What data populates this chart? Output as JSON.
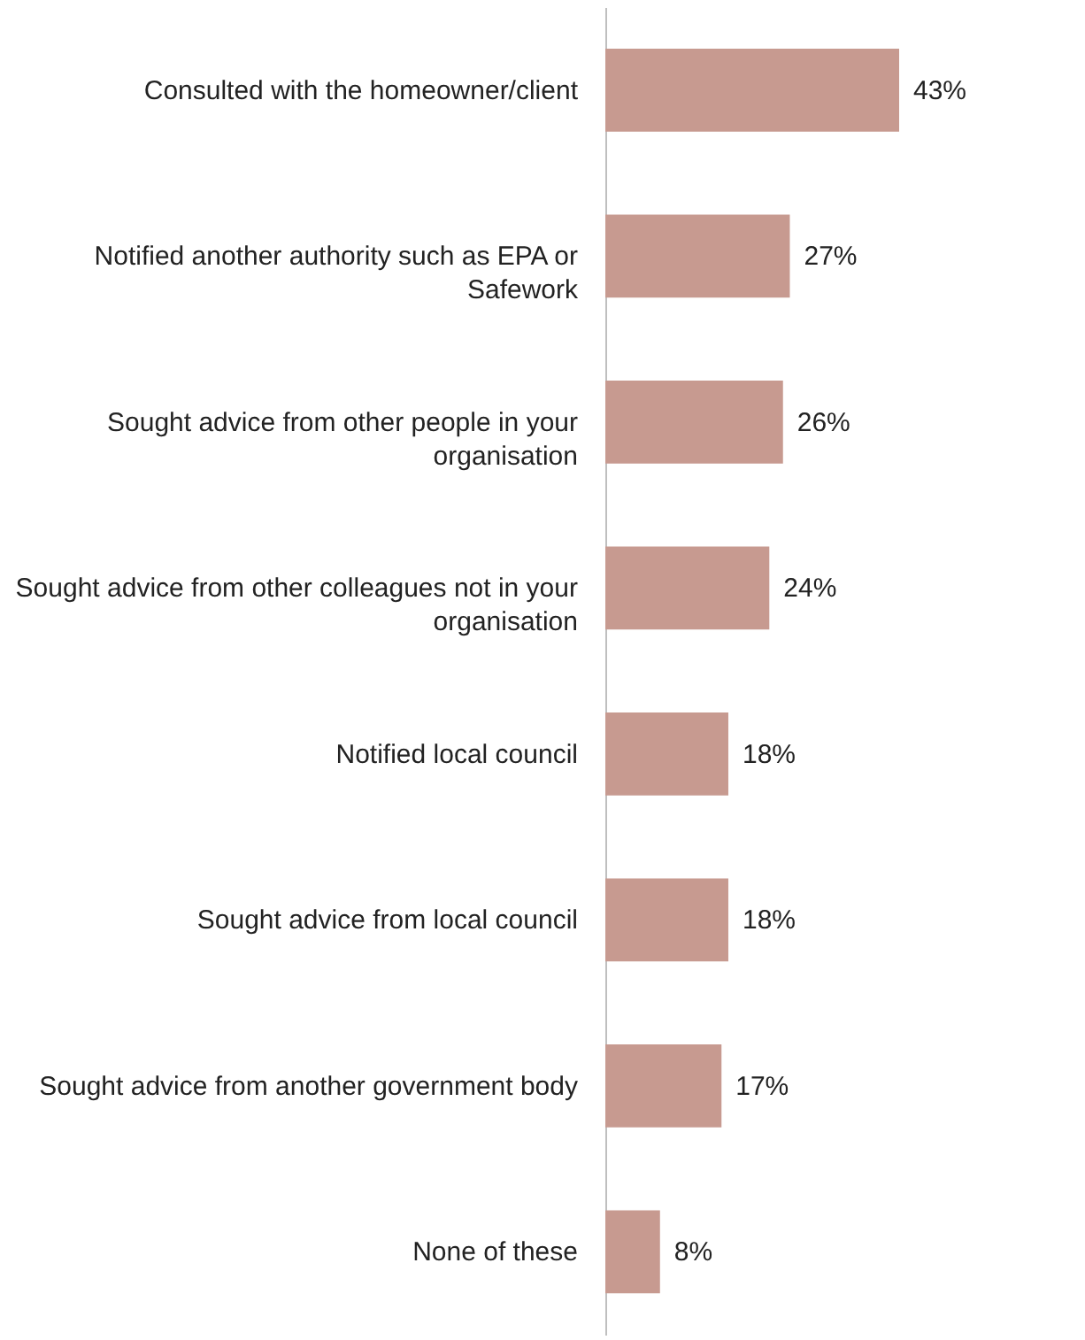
{
  "chart_data": {
    "type": "bar",
    "orientation": "horizontal",
    "categories": [
      "Consulted with the homeowner/client",
      "Notified another authority such as EPA or Safework",
      "Sought advice from other people in your organisation",
      "Sought advice from other colleagues not in your organisation",
      "Notified local council",
      "Sought advice from local council",
      "Sought advice from another government body",
      "None of these"
    ],
    "values": [
      43,
      27,
      26,
      24,
      18,
      18,
      17,
      8
    ],
    "value_labels": [
      "43%",
      "27%",
      "26%",
      "24%",
      "18%",
      "18%",
      "17%",
      "8%"
    ],
    "color": "#c79a90"
  }
}
